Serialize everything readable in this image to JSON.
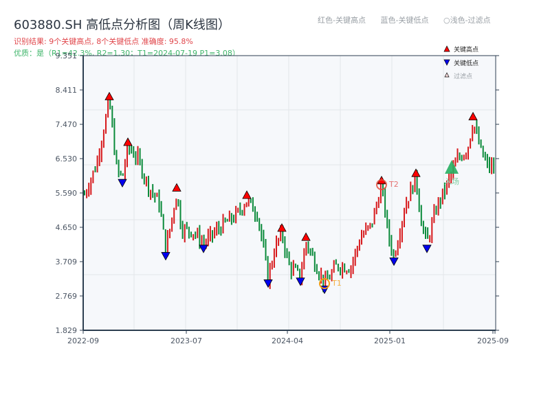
{
  "header": {
    "title": "603880.SH 高低点分析图（周K线图）",
    "result_line": "识别结果: 9个关键高点, 8个关键低点  准确度: 95.8%",
    "quality_line": "优质：是（R1=42.3%, R2=1.30；T1=2024-07-19 P1=3.08）"
  },
  "top_legend": {
    "items": [
      "红色-关键高点",
      "蓝色-关键低点",
      "○浅色-过滤点"
    ]
  },
  "chart_legend": {
    "items": [
      {
        "symbol": "red-up-triangle",
        "label": "关键高点"
      },
      {
        "symbol": "blue-down-triangle",
        "label": "关键低点"
      },
      {
        "symbol": "outline-up-triangle",
        "label": "过滤点"
      }
    ]
  },
  "annotations": {
    "t1_label": "T1",
    "t2_label": "T2",
    "entry_label": "入场"
  },
  "colors": {
    "up": "#d7191c",
    "down": "#0a8a3a",
    "high_marker": "#ff0000",
    "low_marker": "#0000ee",
    "t1_ring": "#f39c12",
    "t2_ring": "#e74c3c",
    "entry": "#27ae60",
    "plot_bg": "#f6f8fb",
    "grid": "#e3e6ea",
    "axis": "#2c3e50"
  },
  "chart_data": {
    "type": "candlestick",
    "title": "603880.SH 高低点分析图（周K线图）",
    "xlabel": "",
    "ylabel": "",
    "ylim": [
      1.829,
      9.351
    ],
    "yticks": [
      "1.829",
      "2.769",
      "3.709",
      "4.650",
      "5.590",
      "6.530",
      "7.470",
      "8.411",
      "9.351"
    ],
    "xticks": [
      "2022-09",
      "2023-07",
      "2024-04",
      "2025-01",
      "2025-09"
    ],
    "grid": true,
    "legend_position": "top-right",
    "key_highs": [
      {
        "approx_date": "2022-11",
        "price": 8.1
      },
      {
        "approx_date": "2023-01",
        "price": 6.85
      },
      {
        "approx_date": "2023-05",
        "price": 5.6
      },
      {
        "approx_date": "2023-11",
        "price": 5.4
      },
      {
        "approx_date": "2024-03",
        "price": 4.5
      },
      {
        "approx_date": "2024-05",
        "price": 4.25
      },
      {
        "approx_date": "2024-12",
        "price": 5.8
      },
      {
        "approx_date": "2025-03",
        "price": 6.0
      },
      {
        "approx_date": "2025-07",
        "price": 7.55
      }
    ],
    "key_lows": [
      {
        "approx_date": "2022-12",
        "price": 6.0
      },
      {
        "approx_date": "2023-05",
        "price": 4.0
      },
      {
        "approx_date": "2023-08",
        "price": 4.2
      },
      {
        "approx_date": "2024-01",
        "price": 3.25
      },
      {
        "approx_date": "2024-04",
        "price": 3.3
      },
      {
        "approx_date": "2024-07",
        "price": 3.08
      },
      {
        "approx_date": "2025-01",
        "price": 3.85
      },
      {
        "approx_date": "2025-04",
        "price": 4.2
      }
    ],
    "special_points": [
      {
        "label": "T1",
        "date": "2024-07-19",
        "price": 3.08
      },
      {
        "label": "T2",
        "approx_date": "2024-12",
        "price": 5.8
      },
      {
        "label": "入场",
        "approx_date": "2025-05",
        "price": 6.25
      }
    ],
    "metrics": {
      "R1": "42.3%",
      "R2": 1.3,
      "accuracy": "95.8%",
      "key_high_count": 9,
      "key_low_count": 8
    }
  }
}
